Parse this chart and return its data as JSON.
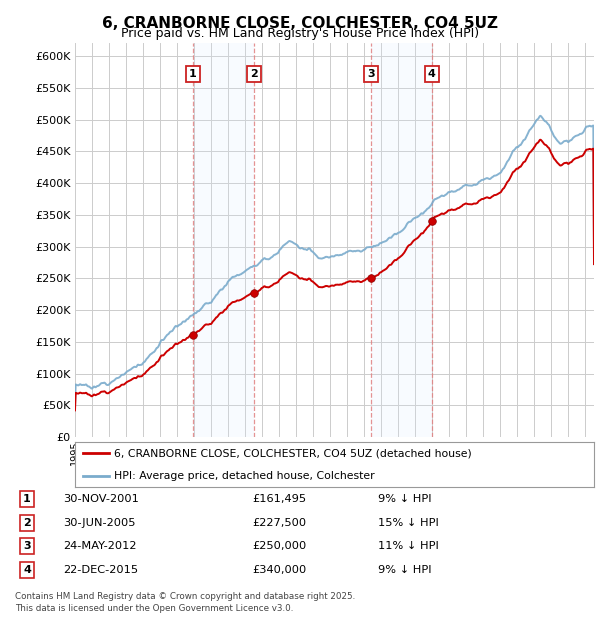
{
  "title": "6, CRANBORNE CLOSE, COLCHESTER, CO4 5UZ",
  "subtitle": "Price paid vs. HM Land Registry's House Price Index (HPI)",
  "ylim": [
    0,
    620000
  ],
  "yticks": [
    0,
    50000,
    100000,
    150000,
    200000,
    250000,
    300000,
    350000,
    400000,
    450000,
    500000,
    550000,
    600000
  ],
  "sale_year_nums": [
    2001.917,
    2005.5,
    2012.4,
    2015.97
  ],
  "sale_prices": [
    161495,
    227500,
    250000,
    340000
  ],
  "sale_labels": [
    "1",
    "2",
    "3",
    "4"
  ],
  "sale_info": [
    {
      "label": "1",
      "date": "30-NOV-2001",
      "price": "£161,495",
      "pct": "9% ↓ HPI"
    },
    {
      "label": "2",
      "date": "30-JUN-2005",
      "price": "£227,500",
      "pct": "15% ↓ HPI"
    },
    {
      "label": "3",
      "date": "24-MAY-2012",
      "price": "£250,000",
      "pct": "11% ↓ HPI"
    },
    {
      "label": "4",
      "date": "22-DEC-2015",
      "price": "£340,000",
      "pct": "9% ↓ HPI"
    }
  ],
  "line_color_sale": "#cc0000",
  "line_color_hpi": "#7aabcc",
  "grid_color": "#cccccc",
  "background_color": "#ffffff",
  "shade_color": "#ddeeff",
  "footer": "Contains HM Land Registry data © Crown copyright and database right 2025.\nThis data is licensed under the Open Government Licence v3.0."
}
